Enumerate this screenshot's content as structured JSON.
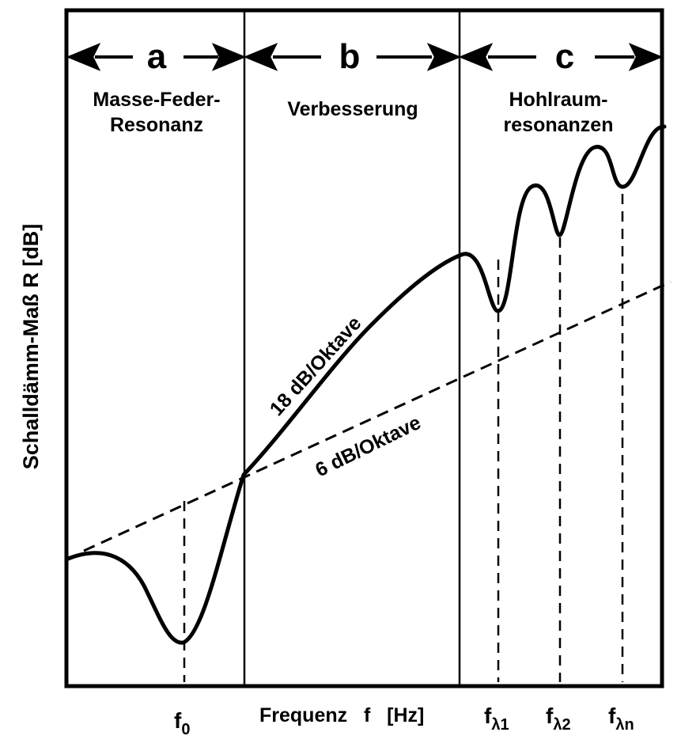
{
  "regions": [
    {
      "letter": "a",
      "line1": "Masse-Feder-",
      "line2": "Resonanz"
    },
    {
      "letter": "b",
      "line1": "Verbesserung",
      "line2": ""
    },
    {
      "letter": "c",
      "line1": "Hohlraum-",
      "line2": "resonanzen"
    }
  ],
  "y_axis_label": "Schalldämm-Maß   R   [dB]",
  "x_axis_label": "Frequenz   f   [Hz]",
  "slope_steep": "18 dB/Oktave",
  "slope_shallow": "6 dB/Oktave",
  "freq_marks": {
    "f0": {
      "base": "f",
      "sub": "0"
    },
    "fl1": {
      "base": "f",
      "sub": "λ1"
    },
    "fl2": {
      "base": "f",
      "sub": "λ2"
    },
    "fln": {
      "base": "f",
      "sub": "λn"
    }
  },
  "colors": {
    "line": "#000000",
    "background": "#ffffff"
  }
}
